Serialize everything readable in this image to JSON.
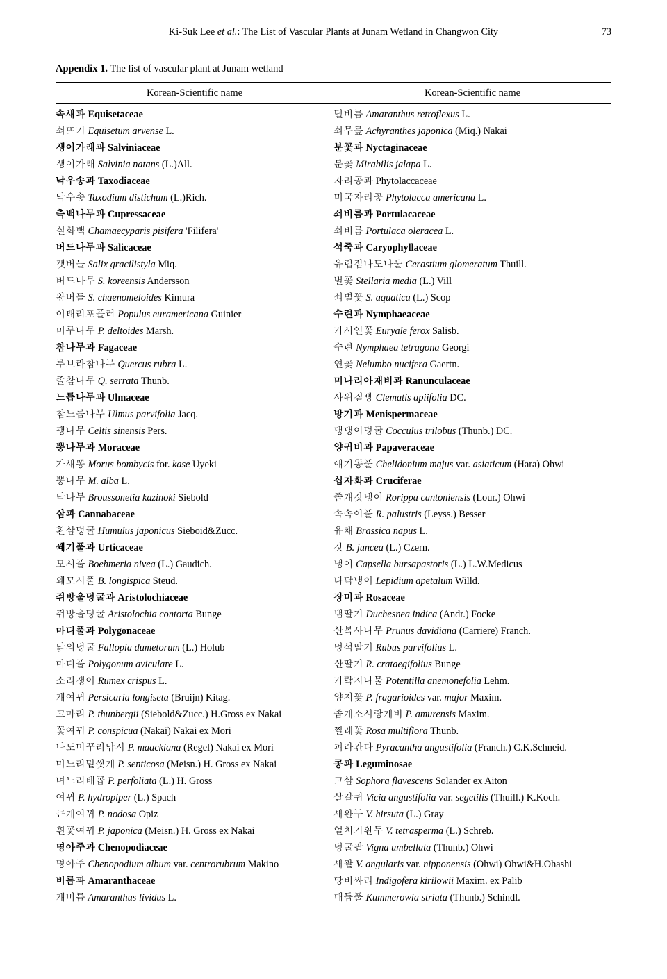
{
  "header": {
    "running_head": "Ki-Suk Lee ",
    "etal": "et al.",
    "title_rest": ": The List of Vascular Plants at Junam Wetland in Changwon City",
    "page_number": "73"
  },
  "appendix": {
    "label": "Appendix 1.",
    "caption": " The list of vascular plant at Junam wetland"
  },
  "column_header": "Korean-Scientific name",
  "left_entries": [
    {
      "bold": true,
      "pre": "속새과 ",
      "it": "",
      "post": "Equisetaceae"
    },
    {
      "pre": "쇠뜨기 ",
      "it": "Equisetum arvense",
      "post": " L."
    },
    {
      "bold": true,
      "pre": "생이가래과 ",
      "it": "",
      "post": "Salviniaceae"
    },
    {
      "pre": "생이가래 ",
      "it": "Salvinia natans",
      "post": " (L.)All."
    },
    {
      "bold": true,
      "pre": "낙우송과 ",
      "it": "",
      "post": "Taxodiaceae"
    },
    {
      "pre": "낙우송 ",
      "it": "Taxodium distichum",
      "post": " (L.)Rich."
    },
    {
      "bold": true,
      "pre": "측백나무과 ",
      "it": "",
      "post": "Cupressaceae"
    },
    {
      "pre": "실화백 ",
      "it": "Chamaecyparis pisifera",
      "post": " 'Filifera'"
    },
    {
      "bold": true,
      "pre": "버드나무과 ",
      "it": "",
      "post": "Salicaceae"
    },
    {
      "pre": "갯버들 ",
      "it": "Salix gracilistyla",
      "post": " Miq."
    },
    {
      "pre": "버드나무 ",
      "it": "S. koreensis",
      "post": " Andersson"
    },
    {
      "pre": "왕버들 ",
      "it": "S. chaenomeloides",
      "post": " Kimura"
    },
    {
      "pre": "이태리포플러 ",
      "it": "Populus euramericana",
      "post": " Guinier"
    },
    {
      "pre": "미루나무 ",
      "it": "P. deltoides",
      "post": " Marsh."
    },
    {
      "bold": true,
      "pre": "참나무과 ",
      "it": "",
      "post": "Fagaceae"
    },
    {
      "pre": "루브라참나무 ",
      "it": "Quercus rubra",
      "post": " L."
    },
    {
      "pre": "졸참나무 ",
      "it": "Q. serrata",
      "post": " Thunb."
    },
    {
      "bold": true,
      "pre": "느릅나무과 ",
      "it": "",
      "post": "Ulmaceae"
    },
    {
      "pre": "참느릅나무 ",
      "it": "Ulmus parvifolia",
      "post": " Jacq."
    },
    {
      "pre": "팽나무 ",
      "it": "Celtis sinensis",
      "post": " Pers."
    },
    {
      "bold": true,
      "pre": "뽕나무과 ",
      "it": "",
      "post": "Moraceae"
    },
    {
      "pre": "가새뽕 ",
      "it": "Morus bombycis",
      "post": " for. ",
      "it2": "kase",
      "post2": " Uyeki"
    },
    {
      "pre": "뽕나무 ",
      "it": "M. alba",
      "post": " L."
    },
    {
      "pre": "닥나무 ",
      "it": "Broussonetia kazinoki",
      "post": " Siebold"
    },
    {
      "bold": true,
      "pre": "삼과 ",
      "it": "",
      "post": "Cannabaceae"
    },
    {
      "pre": "환삼덩굴 ",
      "it": "Humulus japonicus",
      "post": " Sieboid&Zucc."
    },
    {
      "bold": true,
      "pre": "쐐기풀과 ",
      "it": "",
      "post": "Urticaceae"
    },
    {
      "pre": "모시풀 ",
      "it": "Boehmeria nivea",
      "post": " (L.) Gaudich."
    },
    {
      "pre": "왜모시풀 ",
      "it": "B. longispica",
      "post": " Steud."
    },
    {
      "bold": true,
      "pre": "쥐방울덩굴과 ",
      "it": "",
      "post": "Aristolochiaceae"
    },
    {
      "pre": "쥐방울덩굴 ",
      "it": "Aristolochia contorta",
      "post": " Bunge"
    },
    {
      "bold": true,
      "pre": "마디풀과 ",
      "it": "",
      "post": "Polygonaceae"
    },
    {
      "pre": "닭의덩굴 ",
      "it": "Fallopia dumetorum",
      "post": " (L.) Holub"
    },
    {
      "pre": "마디풀 ",
      "it": "Polygonum aviculare",
      "post": " L."
    },
    {
      "pre": "소리쟁이 ",
      "it": "Rumex crispus",
      "post": " L."
    },
    {
      "pre": "개여뀌 ",
      "it": "Persicaria longiseta",
      "post": " (Bruijn) Kitag."
    },
    {
      "pre": "고마리 ",
      "it": "P. thunbergii",
      "post": " (Siebold&Zucc.) H.Gross ex Nakai"
    },
    {
      "pre": "꽃여뀌 ",
      "it": "P. conspicua",
      "post": " (Nakai) Nakai ex Mori"
    },
    {
      "pre": "나도미꾸리낚시 ",
      "it": "P. maackiana",
      "post": " (Regel) Nakai ex Mori"
    },
    {
      "pre": "며느리밑씻개 ",
      "it": "P. senticosa",
      "post": " (Meisn.) H. Gross ex Nakai"
    },
    {
      "pre": "며느리배꼽 ",
      "it": "P. perfoliata",
      "post": " (L.) H. Gross"
    },
    {
      "pre": "여뀌 ",
      "it": "P. hydropiper",
      "post": " (L.) Spach"
    },
    {
      "pre": "큰개여뀌 ",
      "it": "P. nodosa",
      "post": " Opiz"
    },
    {
      "pre": "흰꽃여뀌 ",
      "it": "P. japonica",
      "post": " (Meisn.) H. Gross ex Nakai"
    },
    {
      "bold": true,
      "pre": "명아주과 ",
      "it": "",
      "post": "Chenopodiaceae"
    },
    {
      "pre": "명아주 ",
      "it": "Chenopodium album",
      "post": " var. ",
      "it2": "centrorubrum",
      "post2": " Makino"
    },
    {
      "bold": true,
      "pre": "비름과 ",
      "it": "",
      "post": "Amaranthaceae"
    },
    {
      "pre": "개비름 ",
      "it": "Amaranthus lividus",
      "post": " L."
    }
  ],
  "right_entries": [
    {
      "pre": "털비름 ",
      "it": "Amaranthus retroflexus",
      "post": " L."
    },
    {
      "pre": "쇠무릎 ",
      "it": "Achyranthes japonica",
      "post": " (Miq.) Nakai"
    },
    {
      "bold": true,
      "pre": "분꽃과 ",
      "it": "",
      "post": "Nyctaginaceae"
    },
    {
      "pre": "분꽃 ",
      "it": "Mirabilis jalapa",
      "post": " L."
    },
    {
      "pre": "자리공과 ",
      "it": "",
      "post": "Phytolaccaceae"
    },
    {
      "pre": "미국자리공 ",
      "it": "Phytolacca americana",
      "post": " L."
    },
    {
      "bold": true,
      "pre": "쇠비름과 ",
      "it": "",
      "post": "Portulacaceae"
    },
    {
      "pre": "쇠비름 ",
      "it": "Portulaca oleracea",
      "post": " L."
    },
    {
      "bold": true,
      "pre": "석죽과 ",
      "it": "",
      "post": "Caryophyllaceae"
    },
    {
      "pre": "유럽점나도나물 ",
      "it": "Cerastium glomeratum",
      "post": " Thuill."
    },
    {
      "pre": "별꽃 ",
      "it": "Stellaria media",
      "post": " (L.) Vill"
    },
    {
      "pre": "쇠별꽃 ",
      "it": "S. aquatica",
      "post": " (L.) Scop"
    },
    {
      "bold": true,
      "pre": "수련과 ",
      "it": "",
      "post": "Nymphaeaceae"
    },
    {
      "pre": "가시연꽃 ",
      "it": "Euryale ferox",
      "post": " Salisb."
    },
    {
      "pre": "수련 ",
      "it": "Nymphaea tetragona",
      "post": " Georgi"
    },
    {
      "pre": "연꽃 ",
      "it": "Nelumbo nucifera",
      "post": " Gaertn."
    },
    {
      "bold": true,
      "pre": "미나리아재비과 ",
      "it": "",
      "post": "Ranunculaceae"
    },
    {
      "pre": "사위질빵 ",
      "it": "Clematis apiifolia",
      "post": " DC."
    },
    {
      "bold": true,
      "pre": "방기과 ",
      "it": "",
      "post": "Menispermaceae"
    },
    {
      "pre": "댕댕이덩굴 ",
      "it": "Cocculus trilobus",
      "post": " (Thunb.) DC."
    },
    {
      "bold": true,
      "pre": "양귀비과 ",
      "it": "",
      "post": "Papaveraceae"
    },
    {
      "pre": "애기똥풀 ",
      "it": "Chelidonium majus",
      "post": " var. ",
      "it2": "asiaticum",
      "post2": " (Hara) Ohwi"
    },
    {
      "bold": true,
      "pre": "십자화과 ",
      "it": "",
      "post": "Cruciferae"
    },
    {
      "pre": "좀개갓냉이 ",
      "it": "Rorippa cantoniensis",
      "post": " (Lour.) Ohwi"
    },
    {
      "pre": "속속이풀 ",
      "it": "R. palustris",
      "post": " (Leyss.) Besser"
    },
    {
      "pre": "유채 ",
      "it": "Brassica napus",
      "post": " L."
    },
    {
      "pre": "갓 ",
      "it": "B. juncea",
      "post": " (L.) Czern."
    },
    {
      "pre": "냉이 ",
      "it": "Capsella bursapastoris",
      "post": " (L.) L.W.Medicus"
    },
    {
      "pre": "다닥냉이 ",
      "it": "Lepidium apetalum",
      "post": " Willd."
    },
    {
      "bold": true,
      "pre": "장미과 ",
      "it": "",
      "post": "Rosaceae"
    },
    {
      "pre": "뱀딸기 ",
      "it": "Duchesnea indica",
      "post": " (Andr.) Focke"
    },
    {
      "pre": "산복사나무 ",
      "it": "Prunus davidiana",
      "post": " (Carriere) Franch."
    },
    {
      "pre": "멍석딸기 ",
      "it": "Rubus parvifolius",
      "post": " L."
    },
    {
      "pre": "산딸기 ",
      "it": "R. crataegifolius",
      "post": " Bunge"
    },
    {
      "pre": "가락지나물 ",
      "it": "Potentilla anemonefolia",
      "post": " Lehm."
    },
    {
      "pre": "양지꽃 ",
      "it": "P. fragarioides",
      "post": " var. ",
      "it2": "major",
      "post2": " Maxim."
    },
    {
      "pre": "좀개소시랑개비 ",
      "it": "P. amurensis",
      "post": " Maxim."
    },
    {
      "pre": "찔레꽃 ",
      "it": "Rosa multiflora",
      "post": " Thunb."
    },
    {
      "pre": "피라칸다 ",
      "it": "Pyracantha angustifolia",
      "post": " (Franch.) C.K.Schneid."
    },
    {
      "bold": true,
      "pre": "콩과 ",
      "it": "",
      "post": "Leguminosae"
    },
    {
      "pre": "고삼 ",
      "it": "Sophora flavescens",
      "post": " Solander ex Aiton"
    },
    {
      "pre": "살갈퀴 ",
      "it": "Vicia angustifolia",
      "post": " var. ",
      "it2": "segetilis",
      "post2": " (Thuill.) K.Koch."
    },
    {
      "pre": "새완두 ",
      "it": "V. hirsuta",
      "post": " (L.) Gray"
    },
    {
      "pre": "얼치기완두 ",
      "it": "V. tetrasperma",
      "post": " (L.) Schreb."
    },
    {
      "pre": "덩굴팥 ",
      "it": "Vigna umbellata",
      "post": " (Thunb.) Ohwi"
    },
    {
      "pre": "새팥 ",
      "it": "V. angularis",
      "post": " var. ",
      "it2": "nipponensis",
      "post2": " (Ohwi) Ohwi&H.Ohashi"
    },
    {
      "pre": "땅비싸리 ",
      "it": "Indigofera kirilowii",
      "post": " Maxim. ex Palib"
    },
    {
      "pre": "매듭풀 ",
      "it": "Kummerowia striata",
      "post": " (Thunb.) Schindl."
    }
  ]
}
